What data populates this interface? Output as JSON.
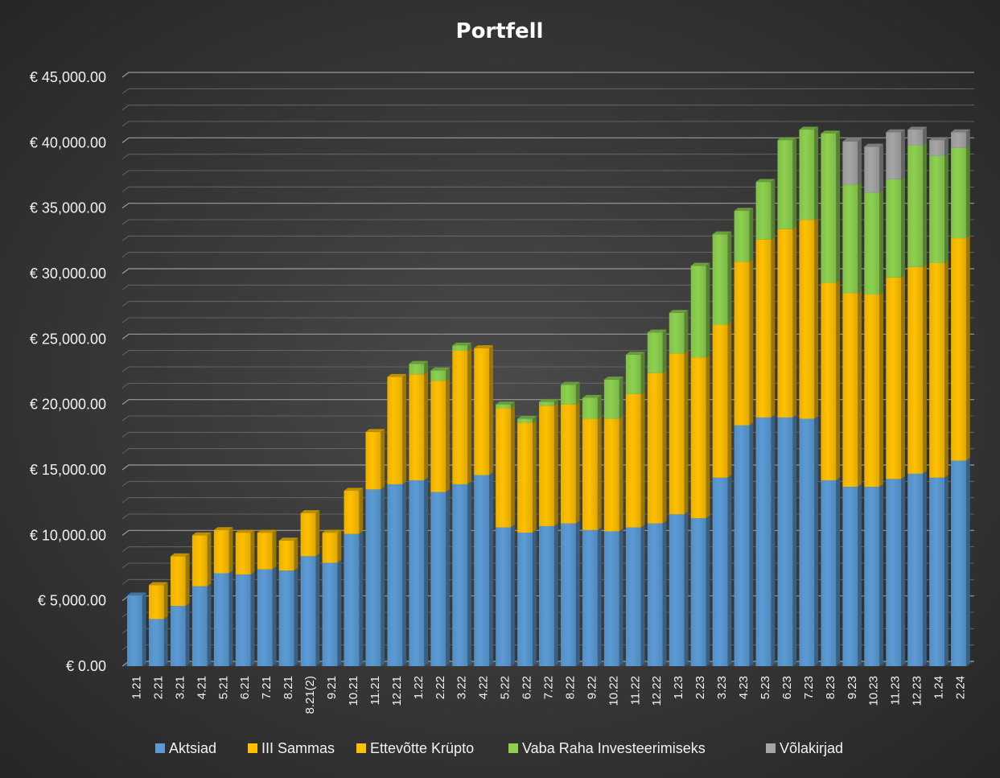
{
  "chart_data": {
    "type": "bar",
    "stacked": true,
    "title": "Portfell",
    "xlabel": "",
    "ylabel": "",
    "ylim": [
      0,
      45000
    ],
    "y_ticks": [
      "€ 0.00",
      "€ 5,000.00",
      "€ 10,000.00",
      "€ 15,000.00",
      "€ 20,000.00",
      "€ 25,000.00",
      "€ 30,000.00",
      "€ 35,000.00",
      "€ 40,000.00",
      "€ 45,000.00"
    ],
    "y_tick_values": [
      0,
      5000,
      10000,
      15000,
      20000,
      25000,
      30000,
      35000,
      40000,
      45000
    ],
    "grid": true,
    "legend_position": "bottom",
    "categories": [
      "1.21",
      "2.21",
      "3.21",
      "4.21",
      "5.21",
      "6.21",
      "7.21",
      "8.21",
      "8.21(2)",
      "9.21",
      "10.21",
      "11.21",
      "12.21",
      "1.22",
      "2.22",
      "3.22",
      "4.22",
      "5.22",
      "6.22",
      "7.22",
      "8.22",
      "9.22",
      "10.22",
      "11.22",
      "12.22",
      "1.23",
      "2.23",
      "3.23",
      "4.23",
      "5.23",
      "6.23",
      "7.23",
      "8.23",
      "9.23",
      "10.23",
      "11.23",
      "12.23",
      "1.24",
      "2.24"
    ],
    "series": [
      {
        "name": "Aktsiad",
        "color": "#5b9bd5",
        "values": [
          5400,
          3600,
          4600,
          6100,
          7100,
          7000,
          7400,
          7300,
          8400,
          7900,
          10100,
          13500,
          13900,
          14200,
          13300,
          13900,
          14600,
          10600,
          10200,
          10700,
          10900,
          10400,
          10300,
          10600,
          10900,
          11600,
          11300,
          14400,
          18400,
          19000,
          19000,
          18900,
          14200,
          13700,
          13700,
          14300,
          14700,
          14400,
          15700
        ]
      },
      {
        "name": "III Sammas",
        "color": "#ffc000",
        "values": [
          0,
          2600,
          3800,
          3900,
          3300,
          3200,
          2800,
          2300,
          3300,
          2300,
          3300,
          4400,
          8200,
          8100,
          8500,
          10200,
          9700,
          9100,
          8400,
          9200,
          9100,
          8500,
          8600,
          10200,
          11500,
          12300,
          12300,
          11700,
          12500,
          13600,
          14400,
          15200,
          15100,
          14800,
          14700,
          15400,
          15800,
          16400,
          17000
        ]
      },
      {
        "name": "Ettevõtte Krüpto",
        "color": "#ffc000",
        "values": [
          0,
          0,
          0,
          0,
          0,
          0,
          0,
          0,
          0,
          0,
          0,
          0,
          0,
          0,
          0,
          0,
          0,
          0,
          0,
          0,
          0,
          0,
          0,
          0,
          0,
          0,
          0,
          0,
          0,
          0,
          0,
          0,
          0,
          0,
          0,
          0,
          0,
          0,
          0
        ]
      },
      {
        "name": "Vaba Raha Investeerimiseks",
        "color": "#8dd14f",
        "values": [
          0,
          0,
          0,
          0,
          0,
          0,
          0,
          0,
          0,
          0,
          0,
          0,
          0,
          800,
          800,
          400,
          0,
          300,
          300,
          300,
          1500,
          1600,
          3000,
          3000,
          3100,
          3100,
          7000,
          6900,
          3900,
          4400,
          6800,
          6900,
          11400,
          8300,
          7800,
          7500,
          9300,
          8200,
          6900
        ]
      },
      {
        "name": "Võlakirjad",
        "color": "#a5a5a5",
        "values": [
          0,
          0,
          0,
          0,
          0,
          0,
          0,
          0,
          0,
          0,
          0,
          0,
          0,
          0,
          0,
          0,
          0,
          0,
          0,
          0,
          0,
          0,
          0,
          0,
          0,
          0,
          0,
          0,
          0,
          0,
          0,
          0,
          0,
          3300,
          3500,
          3600,
          1200,
          1200,
          1200
        ]
      }
    ]
  }
}
